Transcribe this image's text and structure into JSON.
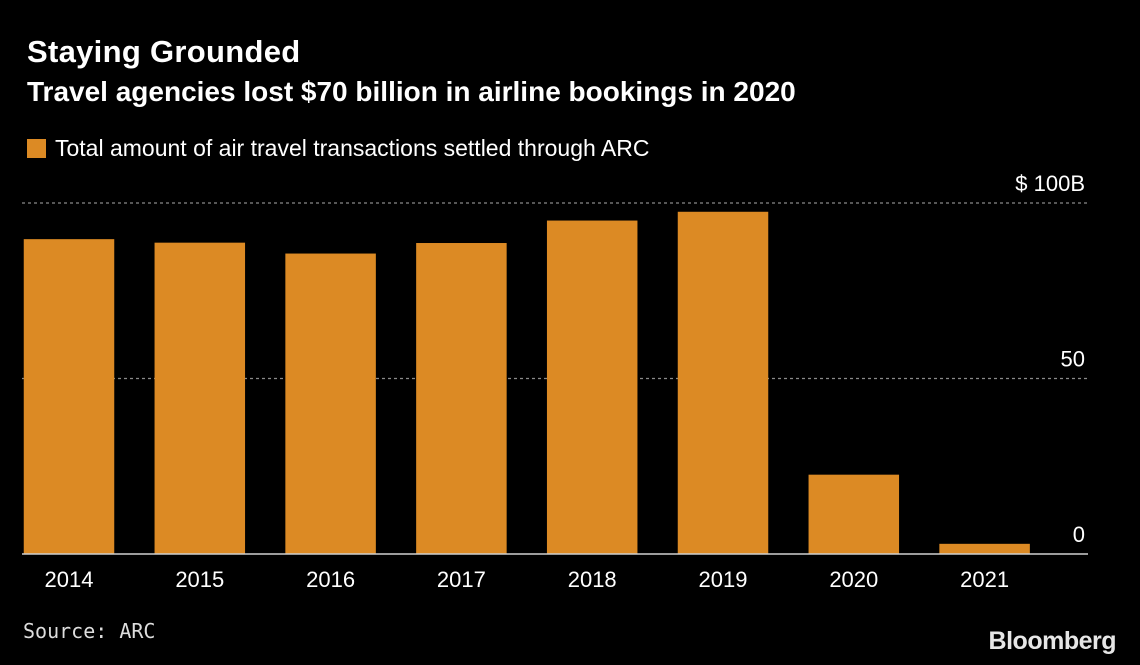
{
  "title": "Staying Grounded",
  "subtitle": "Travel agencies lost $70 billion in airline bookings in 2020",
  "source": "Source: ARC",
  "brand": "Bloomberg",
  "colors": {
    "background": "#000000",
    "bar": "#dc8a24",
    "grid": "#8a8a8a",
    "baseline": "#cfcfcf",
    "text": "#ffffff"
  },
  "chart_data": {
    "type": "bar",
    "categories": [
      "2014",
      "2015",
      "2016",
      "2017",
      "2018",
      "2019",
      "2020",
      "2021"
    ],
    "series": [
      {
        "name": "Total amount of air travel transactions settled through ARC",
        "values": [
          89.7,
          88.7,
          85.6,
          88.6,
          95.0,
          97.5,
          22.6,
          2.9
        ]
      }
    ],
    "ylim": [
      0,
      100
    ],
    "yticks": [
      0,
      50,
      100
    ],
    "ytick_labels": [
      "0",
      "50",
      "$ 100B"
    ],
    "y_axis_side": "right",
    "grid": "dashed horizontal",
    "legend": "top-left"
  }
}
